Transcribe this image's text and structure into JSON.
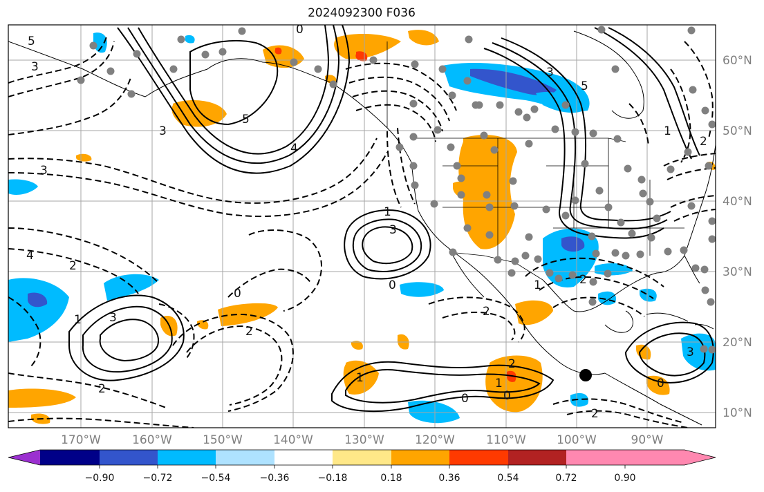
{
  "title": "2024092300 F036",
  "map": {
    "lat_labels": [
      "60°N",
      "50°N",
      "40°N",
      "30°N",
      "20°N",
      "10°N"
    ],
    "lon_labels": [
      "170°W",
      "160°W",
      "150°W",
      "140°W",
      "130°W",
      "120°W",
      "110°W",
      "100°W",
      "90°W"
    ],
    "contour_labels": [
      "5",
      "3",
      "0",
      "3",
      "5",
      "3",
      "4",
      "2",
      "1",
      "3",
      "0",
      "2",
      "1",
      "3",
      "0",
      "1",
      "2",
      "2",
      "0",
      "1",
      "0",
      "2",
      "1",
      "2",
      "2",
      "4",
      "5",
      "1",
      "3",
      "0",
      "3",
      "2"
    ],
    "markers": {
      "station_color": "#808080",
      "storm_color": "#000000"
    }
  },
  "colorbar": {
    "colors": [
      "#9b30d0",
      "#000088",
      "#3355cc",
      "#00bbff",
      "#aee2ff",
      "#ffffff",
      "#ffe888",
      "#ffa500",
      "#ff3a00",
      "#b22222",
      "#ff88b0"
    ],
    "tick_labels": [
      "−0.90",
      "−0.72",
      "−0.54",
      "−0.36",
      "−0.18",
      "0.18",
      "0.36",
      "0.54",
      "0.72",
      "0.90"
    ]
  }
}
